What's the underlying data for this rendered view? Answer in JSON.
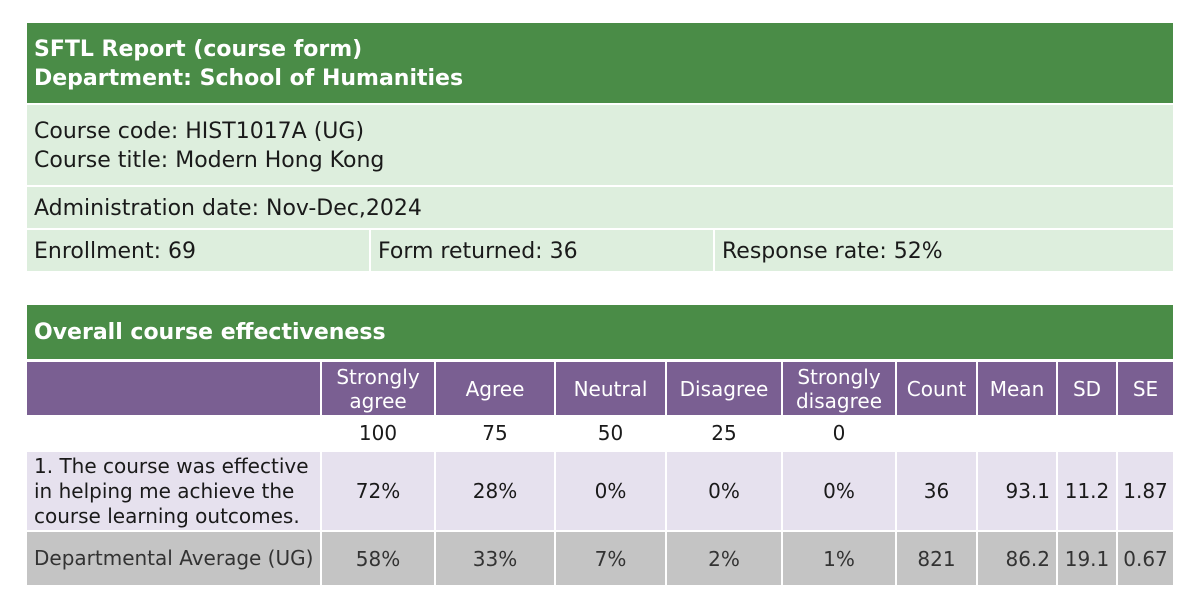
{
  "report": {
    "title": "SFTL Report (course form)",
    "department": "Department: School of Humanities"
  },
  "course": {
    "code": "Course code: HIST1017A (UG)",
    "title": "Course title: Modern Hong Kong",
    "admin_date": "Administration date: Nov-Dec,2024",
    "enrollment": "Enrollment: 69",
    "forms_returned": "Form returned: 36",
    "response_rate": "Response rate: 52%"
  },
  "section": {
    "title": "Overall course effectiveness"
  },
  "table": {
    "headers": [
      "",
      "Strongly agree",
      "Agree",
      "Neutral",
      "Disagree",
      "Strongly disagree",
      "Count",
      "Mean",
      "SD",
      "SE"
    ],
    "scale": [
      "",
      "100",
      "75",
      "50",
      "25",
      "0",
      "",
      "",
      "",
      ""
    ],
    "rows": [
      {
        "label": "1. The course was effective in helping me achieve the course learning outcomes.",
        "values": [
          "72%",
          "28%",
          "0%",
          "0%",
          "0%",
          "36",
          "93.1",
          "11.2",
          "1.87"
        ]
      },
      {
        "label": "Departmental Average (UG)",
        "values": [
          "58%",
          "33%",
          "7%",
          "2%",
          "1%",
          "821",
          "86.2",
          "19.1",
          "0.67"
        ]
      }
    ]
  },
  "colors": {
    "header_green": "#4a8c47",
    "info_green": "#ddeedd",
    "header_purple": "#7a5f92",
    "row_lavender": "#e6e1ee",
    "row_gray": "#c4c4c4"
  }
}
